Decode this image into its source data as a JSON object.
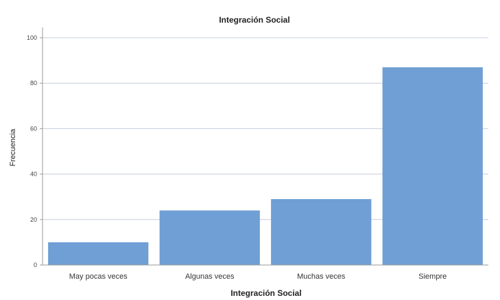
{
  "chart_data": {
    "type": "bar",
    "title": "Integración Social",
    "xlabel": "Integración Social",
    "ylabel": "Frecuencia",
    "categories": [
      "May pocas veces",
      "Algunas veces",
      "Muchas veces",
      "Siempre"
    ],
    "values": [
      10,
      24,
      29,
      87
    ],
    "ylim": [
      0,
      100
    ],
    "yticks": [
      0,
      20,
      40,
      60,
      80,
      100
    ],
    "grid": true,
    "legend": "none",
    "bar_color": "#6f9fd4"
  }
}
